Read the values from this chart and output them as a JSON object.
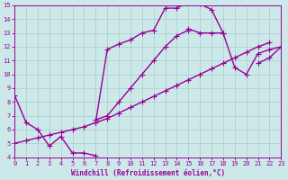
{
  "xlabel": "Windchill (Refroidissement éolien,°C)",
  "bg_color": "#cce8e8",
  "line_color": "#990099",
  "marker": "+",
  "markersize": 4,
  "linewidth": 1.0,
  "xlim": [
    0,
    23
  ],
  "ylim": [
    4,
    15
  ],
  "xticks": [
    0,
    1,
    2,
    3,
    4,
    5,
    6,
    7,
    8,
    9,
    10,
    11,
    12,
    13,
    14,
    15,
    16,
    17,
    18,
    19,
    20,
    21,
    22,
    23
  ],
  "yticks": [
    4,
    5,
    6,
    7,
    8,
    9,
    10,
    11,
    12,
    13,
    14,
    15
  ],
  "grid_color": "#aacccc",
  "segments": [
    {
      "x": [
        0,
        1,
        2,
        3,
        4,
        5,
        6,
        7
      ],
      "y": [
        8.5,
        6.5,
        6.0,
        4.8,
        5.5,
        4.3,
        4.3,
        4.1
      ]
    },
    {
      "x": [
        7,
        8,
        9,
        10,
        11,
        12,
        13,
        14,
        15,
        15,
        16,
        17,
        18
      ],
      "y": [
        6.7,
        7.0,
        8.0,
        9.0,
        10.0,
        11.0,
        12.0,
        12.8,
        13.2,
        13.3,
        13.0,
        13.0,
        13.0
      ]
    },
    {
      "x": [
        7,
        8,
        9,
        10,
        11,
        12,
        13,
        14,
        15,
        16,
        17,
        18
      ],
      "y": [
        6.5,
        11.8,
        12.2,
        12.5,
        13.0,
        13.2,
        14.8,
        14.8,
        15.2,
        15.1,
        14.7,
        13.0
      ]
    },
    {
      "x": [
        18,
        19,
        20,
        21,
        22,
        23
      ],
      "y": [
        13.0,
        10.5,
        10.0,
        11.5,
        11.8,
        12.0
      ]
    },
    {
      "x": [
        21,
        22,
        23
      ],
      "y": [
        10.8,
        11.2,
        12.0
      ]
    },
    {
      "x": [
        0,
        1,
        2,
        3,
        4,
        5,
        6,
        7,
        8,
        9,
        10,
        11,
        12,
        13,
        14,
        15,
        16,
        17,
        18,
        19,
        20,
        21,
        22
      ],
      "y": [
        5.0,
        5.2,
        5.4,
        5.6,
        5.8,
        6.0,
        6.2,
        6.5,
        6.8,
        7.2,
        7.6,
        8.0,
        8.4,
        8.8,
        9.2,
        9.6,
        10.0,
        10.4,
        10.8,
        11.2,
        11.6,
        12.0,
        12.3
      ]
    }
  ]
}
